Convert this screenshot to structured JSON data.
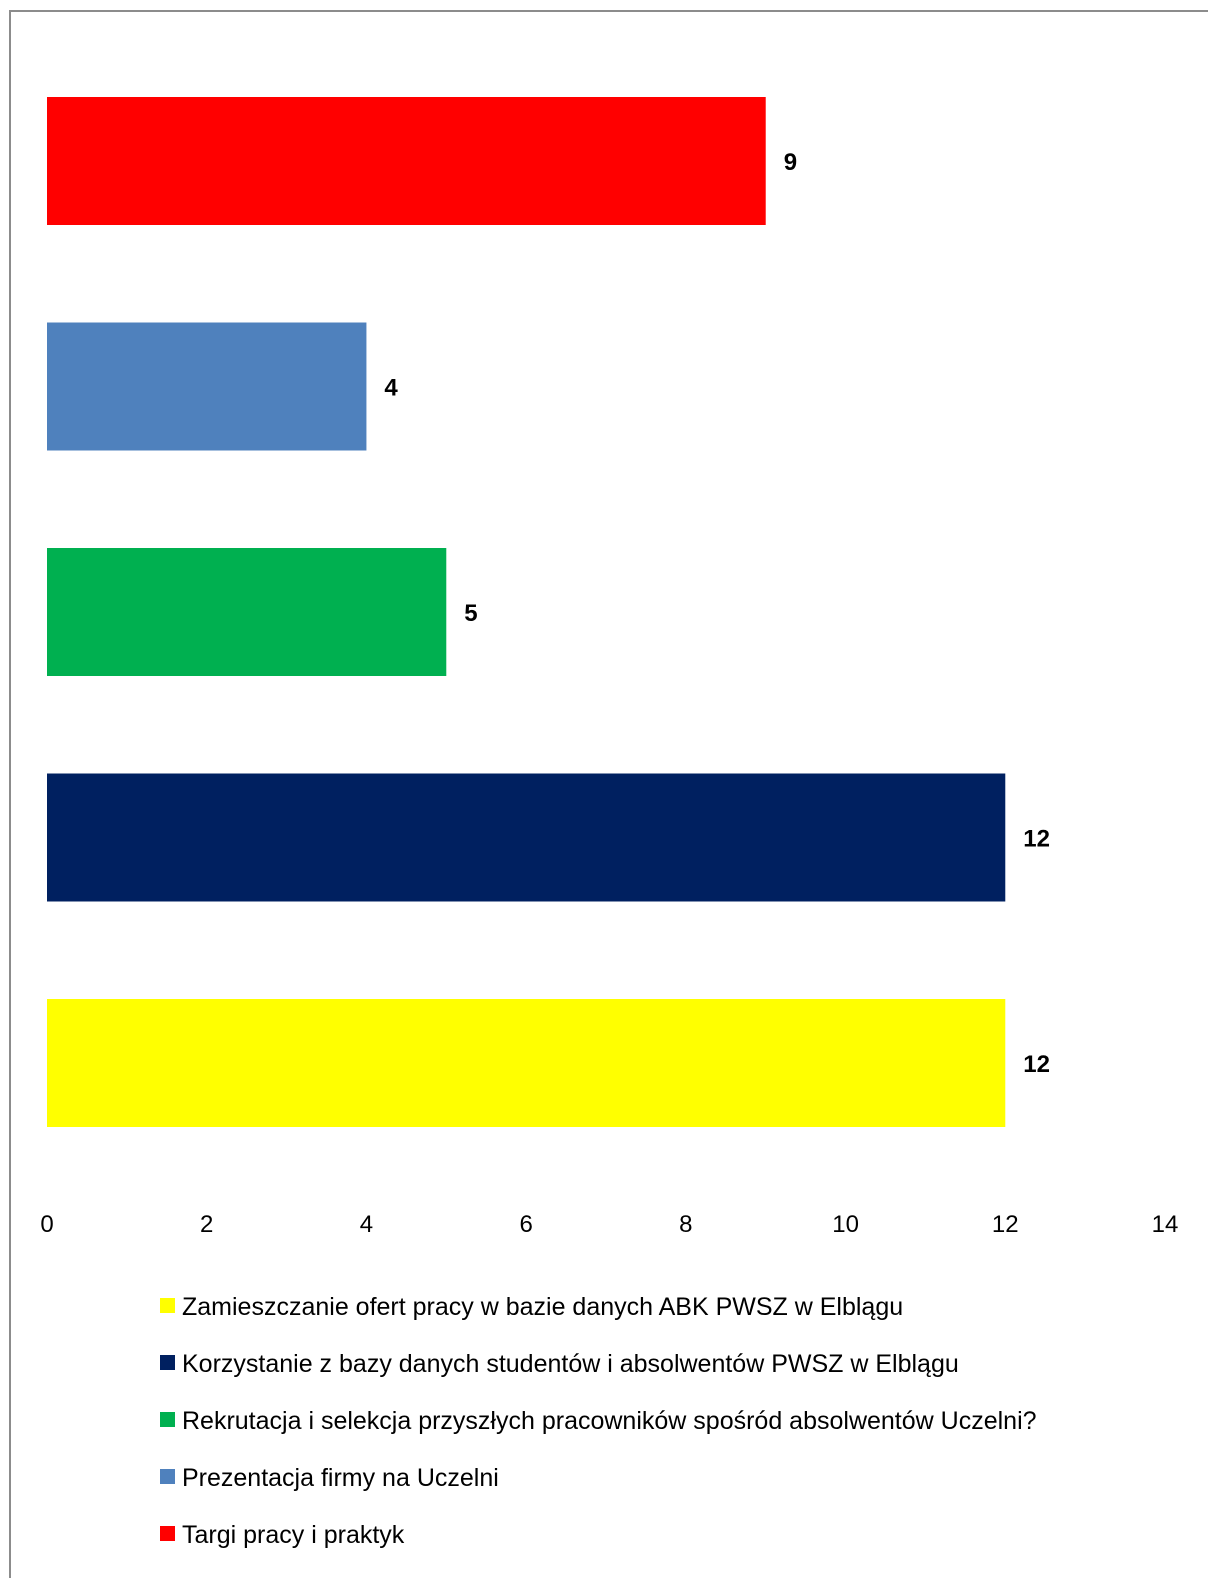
{
  "chart_data": {
    "type": "bar",
    "orientation": "horizontal",
    "categories": [
      "Targi pracy i praktyk",
      "Prezentacja firmy na Uczelni",
      "Rekrutacja i selekcja przyszłych pracowników spośród absolwentów Uczelni?",
      "Korzystanie z bazy danych studentów i absolwentów PWSZ w Elblągu",
      "Zamieszczanie ofert pracy w bazie danych ABK PWSZ w Elblągu"
    ],
    "values": [
      9,
      4,
      5,
      12,
      12
    ],
    "colors": [
      "#ff0000",
      "#4f81bd",
      "#00b050",
      "#002060",
      "#ffff00"
    ],
    "xlim": [
      0,
      14
    ],
    "x_ticks": [
      0,
      2,
      4,
      6,
      8,
      10,
      12,
      14
    ],
    "grid": false,
    "legend_position": "bottom",
    "legend_order": [
      4,
      3,
      2,
      1,
      0
    ],
    "data_labels": true
  }
}
